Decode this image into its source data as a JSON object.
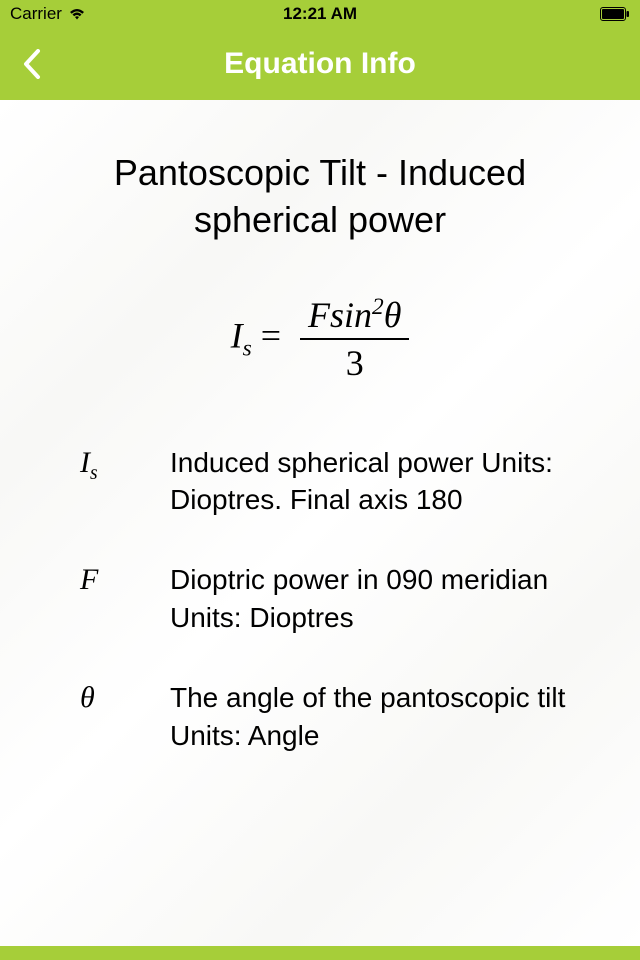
{
  "status": {
    "carrier": "Carrier",
    "time": "12:21 AM"
  },
  "nav": {
    "title": "Equation Info"
  },
  "page": {
    "title": "Pantoscopic Tilt - Induced spherical power"
  },
  "equation": {
    "lhs_base": "I",
    "lhs_sub": "s",
    "rhs_num_F": "F",
    "rhs_num_sin": "sin",
    "rhs_num_exp": "2",
    "rhs_num_theta": "θ",
    "rhs_den": "3",
    "equals": " = "
  },
  "definitions": [
    {
      "symbol_base": "I",
      "symbol_sub": "s",
      "symbol_plain": "",
      "description": "Induced spherical power Units: Dioptres. Final axis 180"
    },
    {
      "symbol_base": "",
      "symbol_sub": "",
      "symbol_plain": "F",
      "description": "Dioptric power in 090 meridian\nUnits: Dioptres"
    },
    {
      "symbol_base": "",
      "symbol_sub": "",
      "symbol_plain": "θ",
      "description": "The angle of the pantoscopic tilt\nUnits: Angle"
    }
  ],
  "colors": {
    "accent": "#a6ce39",
    "text": "#000000",
    "nav_text": "#ffffff",
    "background": "#ffffff"
  }
}
